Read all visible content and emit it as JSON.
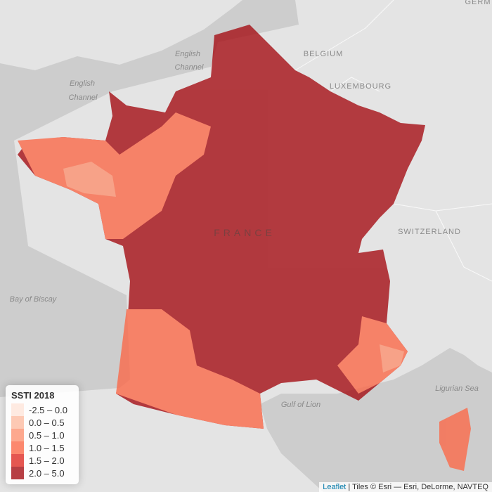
{
  "labels": [
    "GERM",
    "English",
    "Channel",
    "BELGIUM",
    "English",
    "Channel",
    "LUXEMBOURG",
    "FRANCE",
    "SWITZERLAND",
    "Bay of Biscay",
    "Gulf of Lion",
    "Ligurian Sea"
  ],
  "legend": {
    "title": "SSTI 2018",
    "items": [
      {
        "label": "-2.5 – 0.0",
        "color": "#fee5d9"
      },
      {
        "label": "0.0 – 0.5",
        "color": "#fcbba1"
      },
      {
        "label": "0.5 – 1.0",
        "color": "#fc9272"
      },
      {
        "label": "1.0 – 1.5",
        "color": "#fb6a4a"
      },
      {
        "label": "1.5 – 2.0",
        "color": "#de2d26"
      },
      {
        "label": "2.0 – 5.0",
        "color": "#a50f15"
      }
    ]
  },
  "attribution": {
    "link": "Leaflet",
    "text": "| Tiles © Esri — Esri, DeLorme, NAVTEQ"
  }
}
